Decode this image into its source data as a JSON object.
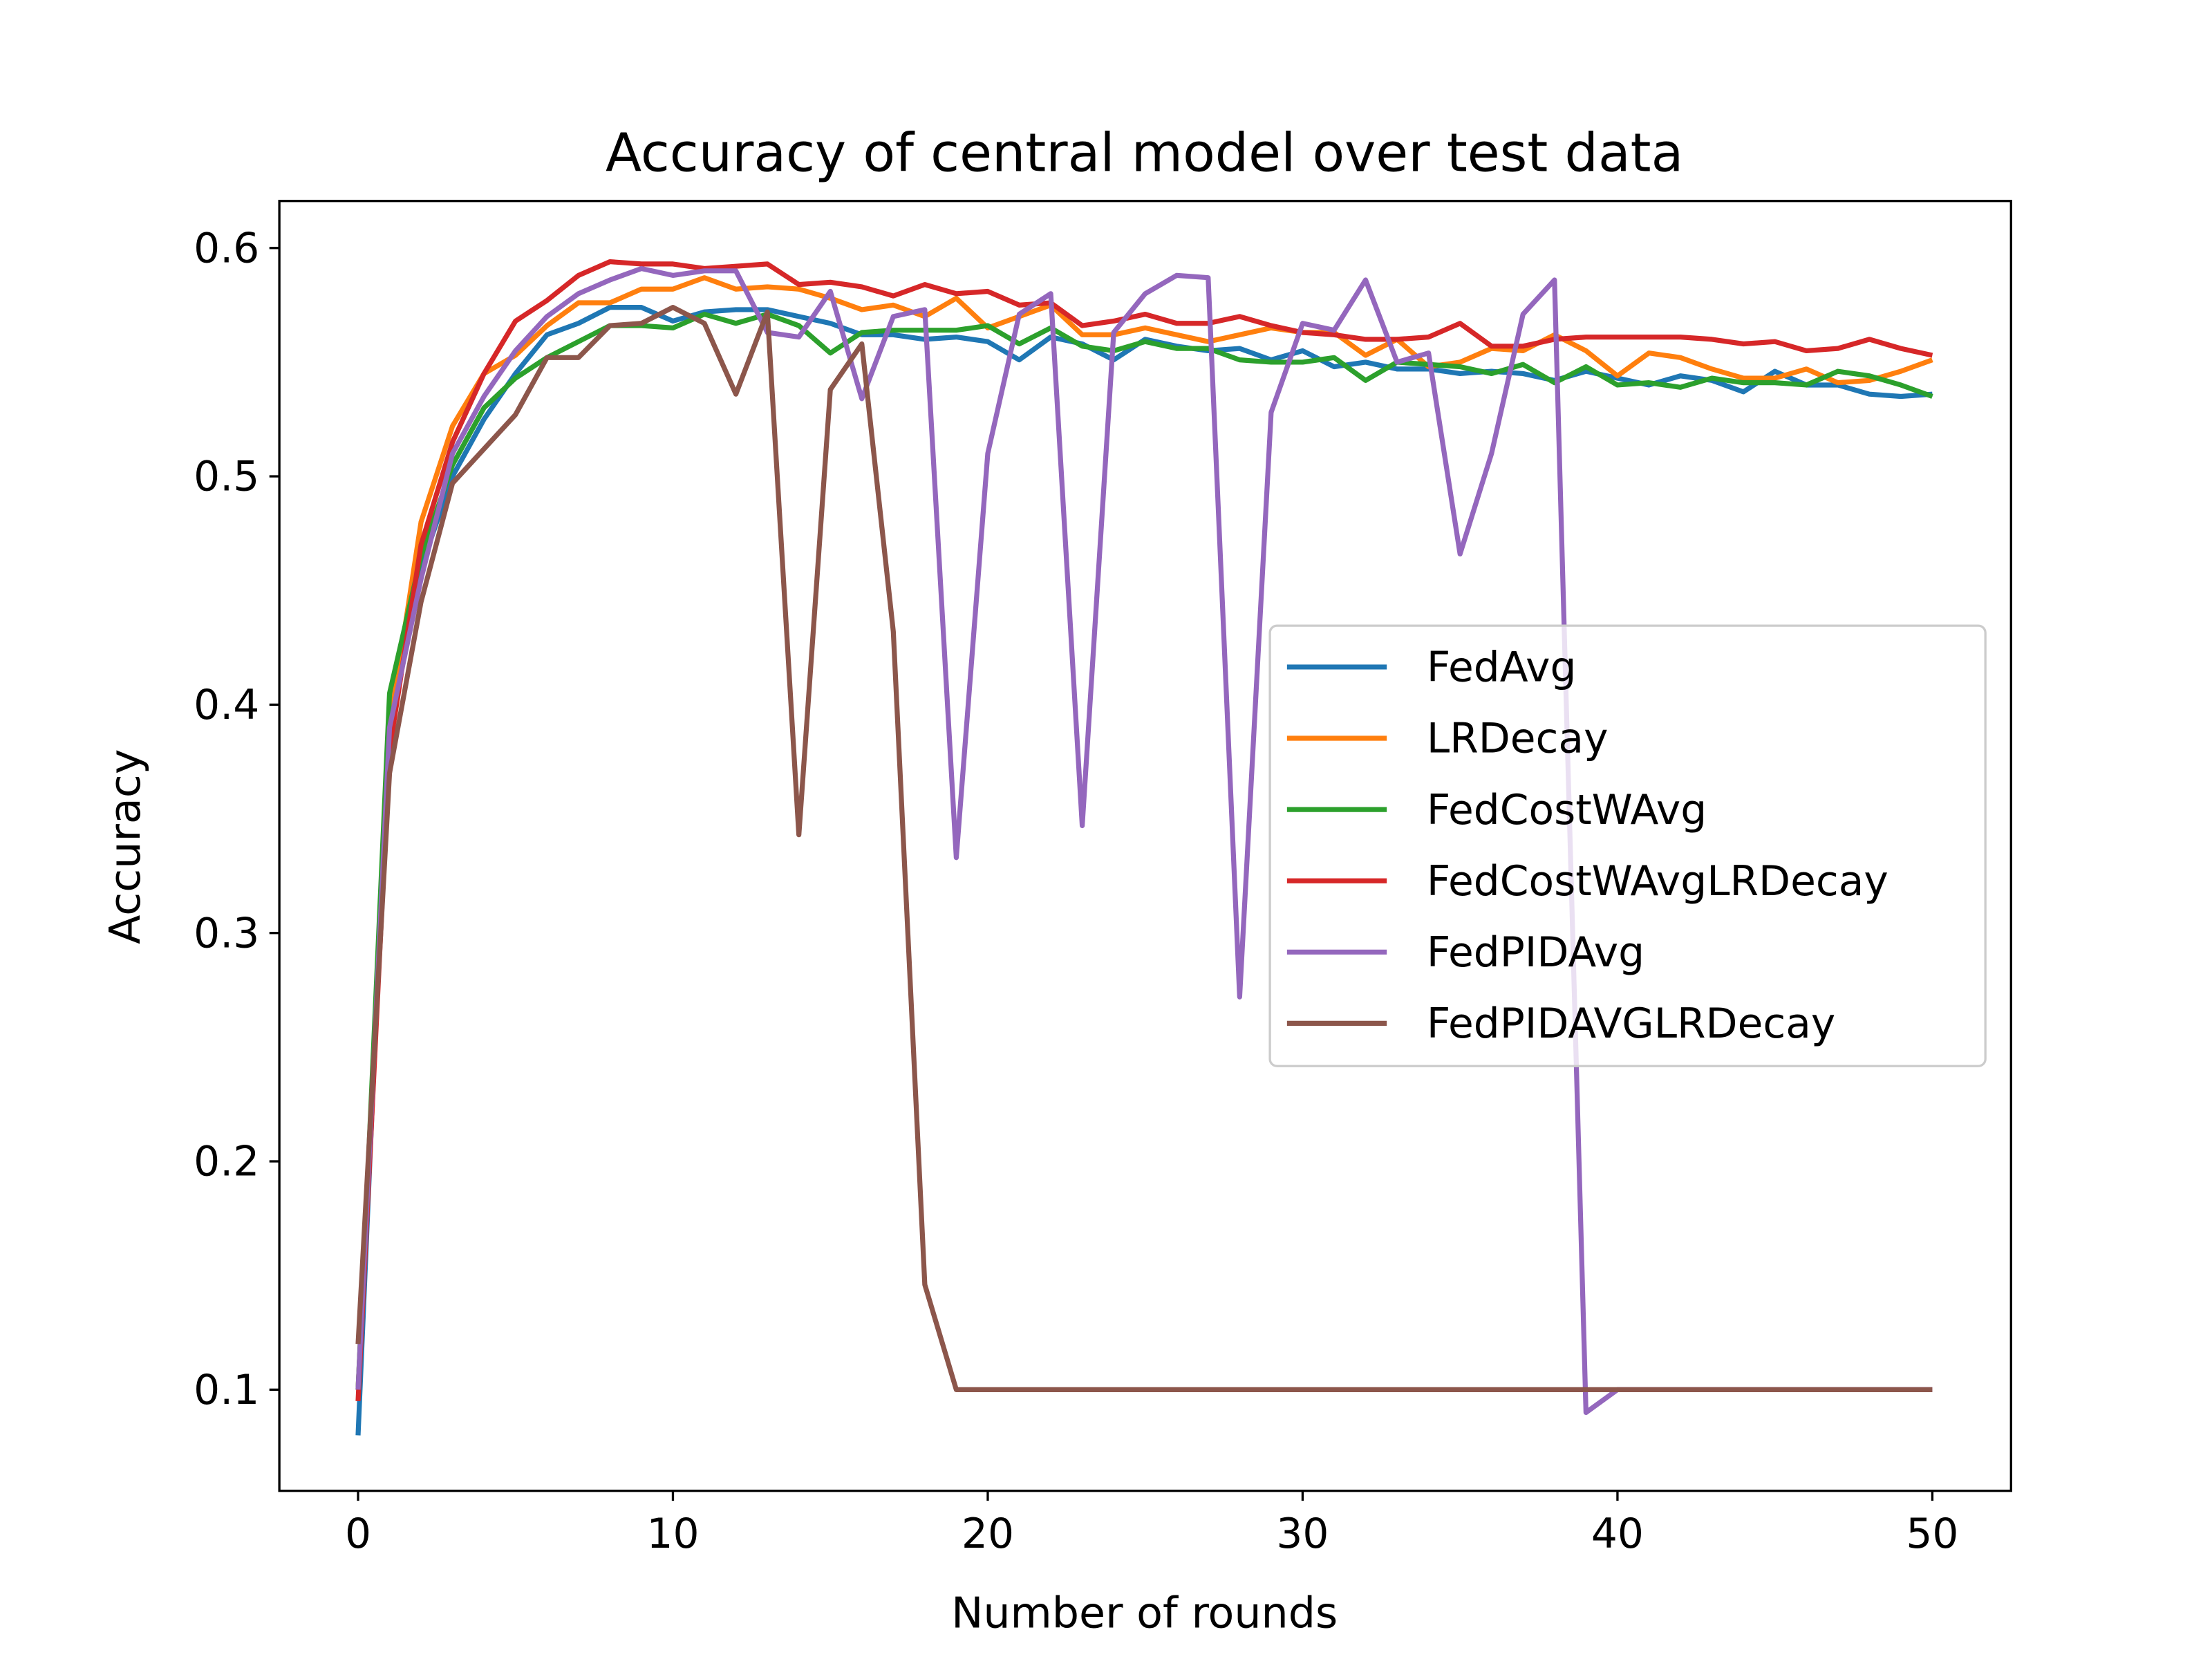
{
  "chart_data": {
    "type": "line",
    "title": "Accuracy of central model over test data",
    "xlabel": "Number of rounds",
    "ylabel": "Accuracy",
    "x": [
      0,
      1,
      2,
      3,
      4,
      5,
      6,
      7,
      8,
      9,
      10,
      11,
      12,
      13,
      14,
      15,
      16,
      17,
      18,
      19,
      20,
      21,
      22,
      23,
      24,
      25,
      26,
      27,
      28,
      29,
      30,
      31,
      32,
      33,
      34,
      35,
      36,
      37,
      38,
      39,
      40,
      41,
      42,
      43,
      44,
      45,
      46,
      47,
      48,
      49,
      50
    ],
    "xlim": [
      -2.5,
      52.5
    ],
    "xticks": [
      0,
      10,
      20,
      30,
      40,
      50
    ],
    "ylim": [
      0.0557,
      0.6206
    ],
    "yticks": [
      0.1,
      0.2,
      0.3,
      0.4,
      0.5,
      0.6
    ],
    "legend": "center right",
    "series": [
      {
        "name": "FedAvg",
        "color": "#1f77b4",
        "values": [
          0.08,
          0.4,
          0.46,
          0.5,
          0.525,
          0.545,
          0.562,
          0.567,
          0.574,
          0.574,
          0.568,
          0.572,
          0.573,
          0.573,
          0.57,
          0.567,
          0.562,
          0.562,
          0.56,
          0.561,
          0.559,
          0.551,
          0.561,
          0.558,
          0.551,
          0.56,
          0.557,
          0.555,
          0.556,
          0.551,
          0.555,
          0.548,
          0.55,
          0.547,
          0.547,
          0.545,
          0.546,
          0.545,
          0.542,
          0.546,
          0.543,
          0.54,
          0.544,
          0.542,
          0.537,
          0.546,
          0.54,
          0.54,
          0.536,
          0.535,
          0.536
        ]
      },
      {
        "name": "LRDecay",
        "color": "#ff7f0e",
        "values": [
          0.1,
          0.39,
          0.48,
          0.522,
          0.545,
          0.553,
          0.566,
          0.576,
          0.576,
          0.582,
          0.582,
          0.587,
          0.582,
          0.583,
          0.582,
          0.578,
          0.573,
          0.575,
          0.57,
          0.578,
          0.565,
          0.57,
          0.575,
          0.562,
          0.562,
          0.565,
          0.562,
          0.559,
          0.562,
          0.565,
          0.563,
          0.563,
          0.553,
          0.56,
          0.548,
          0.55,
          0.556,
          0.555,
          0.562,
          0.555,
          0.544,
          0.554,
          0.552,
          0.547,
          0.543,
          0.543,
          0.547,
          0.541,
          0.542,
          0.546,
          0.551
        ]
      },
      {
        "name": "FedCostWAvg",
        "color": "#2ca02c",
        "values": [
          0.1,
          0.405,
          0.465,
          0.505,
          0.53,
          0.543,
          0.552,
          0.559,
          0.566,
          0.566,
          0.565,
          0.571,
          0.567,
          0.571,
          0.566,
          0.554,
          0.563,
          0.564,
          0.564,
          0.564,
          0.566,
          0.558,
          0.565,
          0.557,
          0.555,
          0.559,
          0.556,
          0.556,
          0.551,
          0.55,
          0.55,
          0.552,
          0.542,
          0.55,
          0.549,
          0.548,
          0.545,
          0.549,
          0.541,
          0.548,
          0.54,
          0.541,
          0.539,
          0.543,
          0.541,
          0.541,
          0.54,
          0.546,
          0.544,
          0.54,
          0.535
        ]
      },
      {
        "name": "FedCostWAvgLRDecay",
        "color": "#d62728",
        "values": [
          0.095,
          0.38,
          0.47,
          0.515,
          0.545,
          0.568,
          0.577,
          0.588,
          0.594,
          0.593,
          0.593,
          0.591,
          0.592,
          0.593,
          0.584,
          0.585,
          0.583,
          0.579,
          0.584,
          0.58,
          0.581,
          0.575,
          0.576,
          0.566,
          0.568,
          0.571,
          0.567,
          0.567,
          0.57,
          0.566,
          0.563,
          0.562,
          0.56,
          0.56,
          0.561,
          0.567,
          0.557,
          0.557,
          0.56,
          0.561,
          0.561,
          0.561,
          0.561,
          0.56,
          0.558,
          0.559,
          0.555,
          0.556,
          0.56,
          0.556,
          0.553
        ]
      },
      {
        "name": "FedPIDAvg",
        "color": "#9467bd",
        "values": [
          0.1,
          0.39,
          0.455,
          0.51,
          0.535,
          0.555,
          0.57,
          0.58,
          0.586,
          0.591,
          0.588,
          0.59,
          0.59,
          0.563,
          0.561,
          0.581,
          0.534,
          0.57,
          0.573,
          0.333,
          0.51,
          0.571,
          0.58,
          0.347,
          0.563,
          0.58,
          0.588,
          0.587,
          0.272,
          0.528,
          0.567,
          0.564,
          0.586,
          0.55,
          0.554,
          0.466,
          0.51,
          0.571,
          0.586,
          0.09,
          0.1,
          0.1,
          0.1,
          0.1,
          0.1,
          0.1,
          0.1,
          0.1,
          0.1,
          0.1,
          0.1
        ]
      },
      {
        "name": "FedPIDAVGLRDecay",
        "color": "#8c564b",
        "values": [
          0.12,
          0.37,
          0.445,
          0.497,
          0.512,
          0.527,
          0.552,
          0.552,
          0.566,
          0.567,
          0.574,
          0.567,
          0.536,
          0.572,
          0.343,
          0.538,
          0.558,
          0.432,
          0.146,
          0.1,
          0.1,
          0.1,
          0.1,
          0.1,
          0.1,
          0.1,
          0.1,
          0.1,
          0.1,
          0.1,
          0.1,
          0.1,
          0.1,
          0.1,
          0.1,
          0.1,
          0.1,
          0.1,
          0.1,
          0.1,
          0.1,
          0.1,
          0.1,
          0.1,
          0.1,
          0.1,
          0.1,
          0.1,
          0.1,
          0.1,
          0.1
        ]
      }
    ]
  }
}
